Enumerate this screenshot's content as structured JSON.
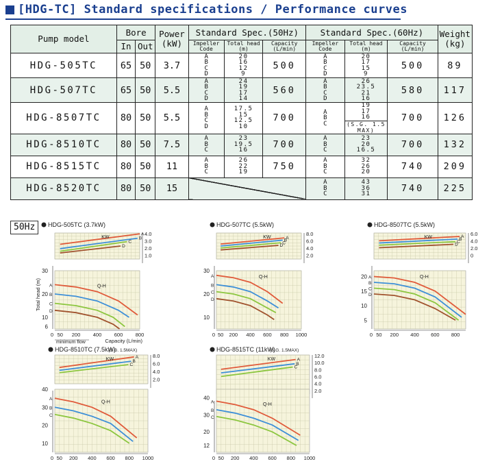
{
  "title": "[HDG-TC] Standard specifications / Performance curves",
  "table": {
    "headers": {
      "pump_model": "Pump model",
      "bore": "Bore",
      "bore_in": "In",
      "bore_out": "Out",
      "power": "Power",
      "power_unit": "(kW)",
      "spec_50": "Standard Spec.(50Hz)",
      "spec_60": "Standard Spec.(60Hz)",
      "weight": "Weight",
      "weight_unit": "(kg)",
      "impeller_1": "Impeller",
      "impeller_2": "Code",
      "head_1": "Total head",
      "head_2": "(m)",
      "cap_1": "Capacity",
      "cap_2": "(L/min)"
    },
    "sg_note": "(S.G. 1.5 MAX)",
    "rows": [
      {
        "model": "HDG-505TC",
        "bore_in": "65",
        "bore_out": "50",
        "power": "3.7",
        "codes50": [
          "A",
          "B",
          "C",
          "D"
        ],
        "heads50": [
          "20",
          "16",
          "12",
          "9"
        ],
        "cap50": "500",
        "codes60": [
          "A",
          "B",
          "C",
          "D"
        ],
        "heads60": [
          "20",
          "17",
          "15",
          "9"
        ],
        "cap60": "500",
        "weight": "89"
      },
      {
        "model": "HDG-507TC",
        "bore_in": "65",
        "bore_out": "50",
        "power": "5.5",
        "codes50": [
          "A",
          "B",
          "C",
          "D"
        ],
        "heads50": [
          "24",
          "19",
          "17",
          "14"
        ],
        "cap50": "560",
        "codes60": [
          "A",
          "B",
          "C",
          "D"
        ],
        "heads60": [
          "26",
          "23.5",
          "21",
          "16"
        ],
        "cap60": "580",
        "weight": "117"
      },
      {
        "model": "HDG-8507TC",
        "bore_in": "80",
        "bore_out": "50",
        "power": "5.5",
        "codes50": [
          "A",
          "B",
          "C",
          "D"
        ],
        "heads50": [
          "17.5",
          "15",
          "12.5",
          "10"
        ],
        "cap50": "700",
        "codes60": [
          "A",
          "B",
          "C"
        ],
        "heads60": [
          "19",
          "17",
          "16"
        ],
        "cap60": "700",
        "weight": "126"
      },
      {
        "model": "HDG-8510TC",
        "bore_in": "80",
        "bore_out": "50",
        "power": "7.5",
        "codes50": [
          "A",
          "B",
          "C"
        ],
        "heads50": [
          "23",
          "19.5",
          "16"
        ],
        "cap50": "700",
        "codes60": [
          "A",
          "B",
          "C"
        ],
        "heads60": [
          "23",
          "20",
          "16.5"
        ],
        "cap60": "700",
        "weight": "132"
      },
      {
        "model": "HDG-8515TC",
        "bore_in": "80",
        "bore_out": "50",
        "power": "11",
        "codes50": [
          "A",
          "B",
          "C"
        ],
        "heads50": [
          "26",
          "22",
          "19"
        ],
        "cap50": "750",
        "codes60": [
          "A",
          "B",
          "C"
        ],
        "heads60": [
          "32",
          "26",
          "20"
        ],
        "cap60": "740",
        "weight": "209"
      },
      {
        "model": "HDG-8520TC",
        "bore_in": "80",
        "bore_out": "50",
        "power": "15",
        "codes50": [],
        "heads50": [],
        "cap50": "",
        "codes60": [
          "A",
          "B",
          "C"
        ],
        "heads60": [
          "43",
          "36",
          "31"
        ],
        "cap60": "740",
        "weight": "225"
      }
    ]
  },
  "freq_label": "50Hz",
  "chart_data": [
    {
      "type": "line",
      "title": "HDG-505TC (3.7kW)",
      "ylabel": "Total head (m)",
      "xlabel": "Capacity (L/min)",
      "min_flow_label": "minimum flow",
      "xticks": [
        "0",
        "50",
        "200",
        "400",
        "600",
        "800"
      ],
      "yticks": [
        "30",
        "20",
        "10",
        "6"
      ],
      "kw_label": "KW",
      "qh_label": "Q-H",
      "kw_ticks": [
        "4.0",
        "3.0",
        "2.0",
        "1.0"
      ],
      "series_colors": {
        "A": "#e05a3a",
        "B": "#3d8fd8",
        "C": "#8cc63f",
        "D": "#a0522d"
      },
      "kw_series": [
        {
          "name": "A",
          "x": [
            50,
            800
          ],
          "y": [
            2.7,
            3.9
          ]
        },
        {
          "name": "B",
          "x": [
            50,
            780
          ],
          "y": [
            2.2,
            3.4
          ]
        },
        {
          "name": "C",
          "x": [
            50,
            680
          ],
          "y": [
            1.9,
            3.0
          ]
        },
        {
          "name": "D",
          "x": [
            50,
            620
          ],
          "y": [
            1.7,
            2.5
          ]
        }
      ],
      "qh_series": [
        {
          "name": "A",
          "x": [
            0,
            200,
            400,
            600,
            780
          ],
          "y": [
            24,
            23,
            21,
            17,
            11
          ]
        },
        {
          "name": "B",
          "x": [
            0,
            200,
            400,
            600,
            700
          ],
          "y": [
            20,
            19,
            17,
            13,
            10
          ]
        },
        {
          "name": "C",
          "x": [
            0,
            200,
            400,
            550,
            660
          ],
          "y": [
            16,
            15,
            13,
            10,
            6
          ]
        },
        {
          "name": "D",
          "x": [
            0,
            200,
            400,
            550,
            610
          ],
          "y": [
            13,
            12,
            10,
            7,
            5
          ]
        }
      ]
    },
    {
      "type": "line",
      "title": "HDG-507TC (5.5kW)",
      "xticks": [
        "0",
        "50",
        "200",
        "400",
        "600",
        "800",
        "1000"
      ],
      "yticks": [
        "30",
        "20",
        "10"
      ],
      "kw_label": "KW",
      "qh_label": "Q-H",
      "kw_ticks": [
        "8.0",
        "6.0",
        "4.0",
        "2.0"
      ],
      "kw_series": [
        {
          "name": "A",
          "x": [
            50,
            800
          ],
          "y": [
            4.6,
            6.5
          ]
        },
        {
          "name": "B",
          "x": [
            50,
            780
          ],
          "y": [
            4.0,
            5.8
          ]
        },
        {
          "name": "C",
          "x": [
            50,
            760
          ],
          "y": [
            3.4,
            5.0
          ]
        },
        {
          "name": "D",
          "x": [
            50,
            730
          ],
          "y": [
            2.8,
            4.2
          ]
        }
      ],
      "qh_series": [
        {
          "name": "A",
          "x": [
            0,
            200,
            400,
            600,
            780
          ],
          "y": [
            28,
            27,
            25,
            21,
            16
          ]
        },
        {
          "name": "B",
          "x": [
            0,
            200,
            400,
            600,
            730
          ],
          "y": [
            24,
            23,
            21,
            17,
            14
          ]
        },
        {
          "name": "C",
          "x": [
            0,
            200,
            400,
            600,
            700
          ],
          "y": [
            21,
            20,
            18,
            14,
            12
          ]
        },
        {
          "name": "D",
          "x": [
            0,
            200,
            400,
            600,
            680
          ],
          "y": [
            18,
            17,
            15,
            11,
            9
          ]
        }
      ]
    },
    {
      "type": "line",
      "title": "HDG-8507TC (5.5kW)",
      "xticks": [
        "0",
        "50",
        "200",
        "400",
        "600",
        "800"
      ],
      "yticks": [
        "20",
        "15",
        "10",
        "5"
      ],
      "kw_label": "KW",
      "qh_label": "Q-H",
      "kw_ticks": [
        "6.0",
        "4.0",
        "2.0",
        "0"
      ],
      "kw_series": [
        {
          "name": "A",
          "x": [
            50,
            840
          ],
          "y": [
            4.2,
            5.2
          ]
        },
        {
          "name": "B",
          "x": [
            50,
            820
          ],
          "y": [
            3.7,
            4.6
          ]
        },
        {
          "name": "C",
          "x": [
            50,
            800
          ],
          "y": [
            3.2,
            4.0
          ]
        },
        {
          "name": "D",
          "x": [
            50,
            780
          ],
          "y": [
            2.6,
            3.4
          ]
        }
      ],
      "qh_series": [
        {
          "name": "A",
          "x": [
            0,
            200,
            400,
            600,
            900
          ],
          "y": [
            20,
            19.5,
            18,
            15,
            7
          ]
        },
        {
          "name": "B",
          "x": [
            0,
            200,
            400,
            600,
            860
          ],
          "y": [
            18,
            17.5,
            16,
            13,
            6
          ]
        },
        {
          "name": "C",
          "x": [
            0,
            200,
            400,
            600,
            830
          ],
          "y": [
            16,
            15.5,
            14,
            11,
            5
          ]
        },
        {
          "name": "D",
          "x": [
            0,
            200,
            400,
            600,
            800
          ],
          "y": [
            14,
            13.5,
            12,
            9,
            5
          ]
        }
      ]
    },
    {
      "type": "line",
      "title": "HDG-8510TC (7.5kW)",
      "sg_note": "(S.G. 1.5MAX)",
      "xticks": [
        "0",
        "50",
        "200",
        "400",
        "600",
        "800",
        "1000"
      ],
      "yticks": [
        "40",
        "30",
        "20",
        "10"
      ],
      "kw_label": "KW",
      "qh_label": "Q-H",
      "kw_ticks": [
        "8.0",
        "6.0",
        "4.0",
        "2.0"
      ],
      "kw_series": [
        {
          "name": "A",
          "x": [
            50,
            850
          ],
          "y": [
            5.4,
            7.6
          ]
        },
        {
          "name": "B",
          "x": [
            50,
            820
          ],
          "y": [
            4.8,
            6.7
          ]
        },
        {
          "name": "C",
          "x": [
            50,
            790
          ],
          "y": [
            4.3,
            6.0
          ]
        }
      ],
      "qh_series": [
        {
          "name": "A",
          "x": [
            0,
            200,
            400,
            600,
            880
          ],
          "y": [
            35,
            33,
            30,
            25,
            13
          ]
        },
        {
          "name": "B",
          "x": [
            0,
            200,
            400,
            600,
            840
          ],
          "y": [
            30,
            28,
            25,
            21,
            11
          ]
        },
        {
          "name": "C",
          "x": [
            0,
            200,
            400,
            600,
            800
          ],
          "y": [
            26,
            24,
            21,
            17,
            10
          ]
        }
      ]
    },
    {
      "type": "line",
      "title": "HDG-8515TC (11kW)",
      "sg_note": "(S.G. 1.5MAX)",
      "xticks": [
        "0",
        "50",
        "200",
        "400",
        "600",
        "800",
        "1000"
      ],
      "yticks": [
        "40",
        "30",
        "20",
        "12"
      ],
      "kw_label": "KW",
      "qh_label": "Q-H",
      "kw_ticks": [
        "12.0",
        "10.0",
        "8.0",
        "6.0",
        "4.0",
        "2.0"
      ],
      "kw_series": [
        {
          "name": "A",
          "x": [
            50,
            850
          ],
          "y": [
            7.6,
            10.6
          ]
        },
        {
          "name": "B",
          "x": [
            50,
            840
          ],
          "y": [
            6.5,
            9.3
          ]
        },
        {
          "name": "C",
          "x": [
            50,
            820
          ],
          "y": [
            5.4,
            8.3
          ]
        }
      ],
      "qh_series": [
        {
          "name": "A",
          "x": [
            0,
            200,
            400,
            600,
            900
          ],
          "y": [
            38,
            36,
            33,
            28,
            18
          ]
        },
        {
          "name": "B",
          "x": [
            0,
            200,
            400,
            600,
            880
          ],
          "y": [
            33,
            31,
            28,
            24,
            15
          ]
        },
        {
          "name": "C",
          "x": [
            0,
            200,
            400,
            600,
            860
          ],
          "y": [
            29,
            27,
            24,
            20,
            12
          ]
        }
      ]
    }
  ]
}
